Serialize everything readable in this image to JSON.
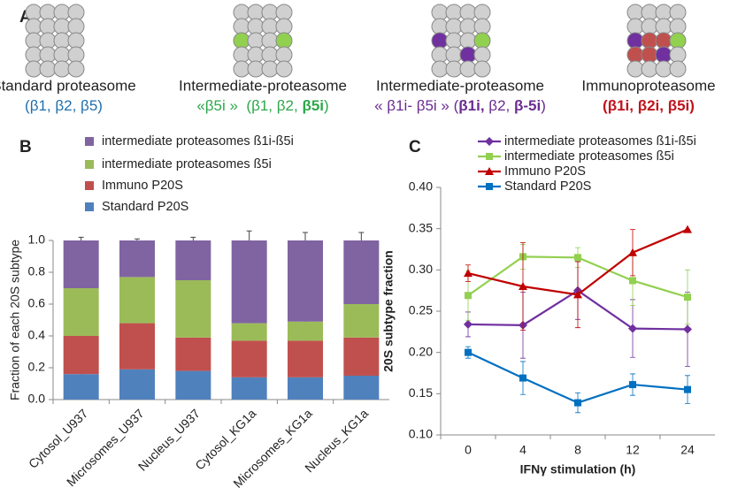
{
  "panel_labels": [
    "A",
    "B",
    "C"
  ],
  "panel_a": {
    "items": [
      {
        "title": "Standard proteasome",
        "color": "#1f6fad",
        "line2": [
          {
            "text": "(β1, β2, β5)",
            "bold": false
          }
        ]
      },
      {
        "title": "Intermediate-proteasome",
        "color": "#2ca84a",
        "line2": [
          {
            "text": "«β5i »  (β1, β2, ",
            "bold": false
          },
          {
            "text": "β5i",
            "bold": true
          },
          {
            "text": ")",
            "bold": false
          }
        ]
      },
      {
        "title": "Intermediate-proteasome",
        "color": "#6a2c91",
        "line2": [
          {
            "text": "« β1i- β5i » (",
            "bold": false
          },
          {
            "text": "β1i,",
            "bold": true
          },
          {
            "text": " β2, ",
            "bold": false
          },
          {
            "text": "β-5i",
            "bold": true
          },
          {
            "text": ")",
            "bold": false
          }
        ]
      },
      {
        "title": "Immunoproteasome",
        "color": "#c0141c",
        "line2": [
          {
            "text": "(β1i, β2i, β5i)",
            "bold": true
          }
        ]
      }
    ]
  },
  "chart_data": [
    {
      "type": "bar",
      "stacked": true,
      "y_label": "Fraction of each 20S subtype",
      "categories": [
        "Cytosol_U937",
        "Microsomes_U937",
        "Nucleus_U937",
        "Cytosol_KG1a",
        "Microsomes_KG1a",
        "Nucleus_KG1a"
      ],
      "series": [
        {
          "name": "intermediate proteasomes ß1i-ß5i",
          "color": "#8064a2",
          "values": [
            0.3,
            0.23,
            0.25,
            0.52,
            0.51,
            0.4
          ],
          "errors": [
            0.02,
            0.01,
            0.02,
            0.06,
            0.05,
            0.05
          ]
        },
        {
          "name": "intermediate proteasomes ß5i",
          "color": "#9bbb59",
          "values": [
            0.3,
            0.29,
            0.36,
            0.11,
            0.12,
            0.21
          ],
          "errors": [
            0.005,
            0.05,
            0.02,
            0.08,
            0.04,
            0.08
          ]
        },
        {
          "name": "Immuno P20S",
          "color": "#c0504d",
          "values": [
            0.24,
            0.29,
            0.21,
            0.23,
            0.23,
            0.24
          ],
          "errors": [
            0.02,
            0.02,
            0.01,
            0.02,
            0.02,
            0.05
          ]
        },
        {
          "name": "Standard P20S",
          "color": "#4f81bd",
          "values": [
            0.16,
            0.19,
            0.18,
            0.14,
            0.14,
            0.15
          ],
          "errors": [
            0.01,
            0.02,
            0.005,
            0.02,
            0.02,
            0.02
          ]
        }
      ],
      "ylim": [
        0,
        1
      ],
      "yticks": [
        {
          "value": 0,
          "label": "0.0"
        },
        0.2,
        0.4,
        0.6,
        0.8,
        {
          "value": 1,
          "label": "1.0"
        }
      ]
    },
    {
      "type": "line",
      "x_label": "IFNγ stimulation (h)",
      "y_label": "20S subtype fraction",
      "categories": [
        "0",
        "4",
        "8",
        "12",
        "24"
      ],
      "series": [
        {
          "name": "intermediate proteasomes ß1i-ß5i",
          "color": "#7030a0",
          "marker": "diamond",
          "values": [
            0.234,
            0.233,
            0.275,
            0.229,
            0.228
          ],
          "errors": [
            0.015,
            0.04,
            0.035,
            0.035,
            0.045
          ]
        },
        {
          "name": "intermediate proteasomes ß5i",
          "color": "#92d050",
          "marker": "square",
          "values": [
            0.269,
            0.316,
            0.315,
            0.287,
            0.267
          ],
          "errors": [
            0.03,
            0.015,
            0.012,
            0.03,
            0.033
          ]
        },
        {
          "name": "Immuno P20S",
          "color": "#c00000",
          "marker": "triangle",
          "values": [
            0.296,
            0.28,
            0.27,
            0.321,
            0.349
          ],
          "errors": [
            0.01,
            0.053,
            0.04,
            0.028,
            0
          ]
        },
        {
          "name": "Standard P20S",
          "color": "#0070c0",
          "marker": "square",
          "values": [
            0.2,
            0.169,
            0.139,
            0.161,
            0.155
          ],
          "errors": [
            0.007,
            0.02,
            0.012,
            0.013,
            0.017
          ]
        }
      ],
      "ylim": [
        0.1,
        0.4
      ],
      "yticks": [
        {
          "value": 0.1,
          "label": "0.10"
        },
        0.15,
        {
          "value": 0.2,
          "label": "0.20"
        },
        0.25,
        {
          "value": 0.3,
          "label": "0.30"
        },
        0.35,
        {
          "value": 0.4,
          "label": "0.40"
        }
      ]
    }
  ]
}
